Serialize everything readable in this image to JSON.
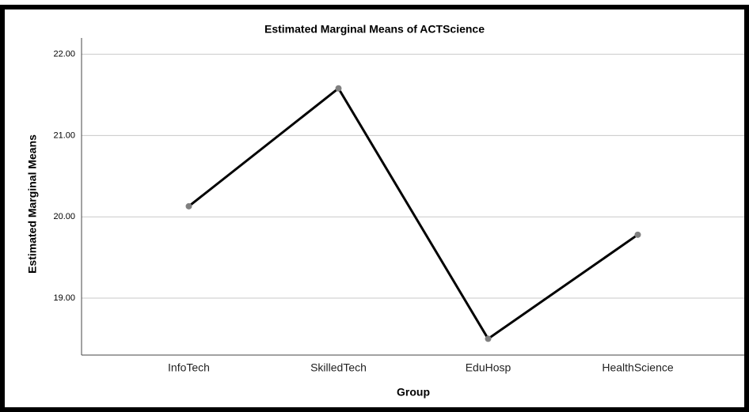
{
  "chart_data": {
    "type": "line",
    "title": "Estimated Marginal Means of ACTScience",
    "xlabel": "Group",
    "ylabel": "Estimated Marginal Means",
    "categories": [
      "InfoTech",
      "SkilledTech",
      "EduHosp",
      "HealthScience"
    ],
    "series": [
      {
        "name": "ACTScience",
        "color": "#000000",
        "marker_color": "#808080",
        "values": [
          20.13,
          21.58,
          18.5,
          19.78
        ]
      }
    ],
    "ylim": [
      18.3,
      22.2
    ],
    "yticks": [
      {
        "value": 19,
        "label": "19.00"
      },
      {
        "value": 20,
        "label": "20.00"
      },
      {
        "value": 21,
        "label": "21.00"
      },
      {
        "value": 22,
        "label": "22.00"
      }
    ],
    "grid": true
  }
}
